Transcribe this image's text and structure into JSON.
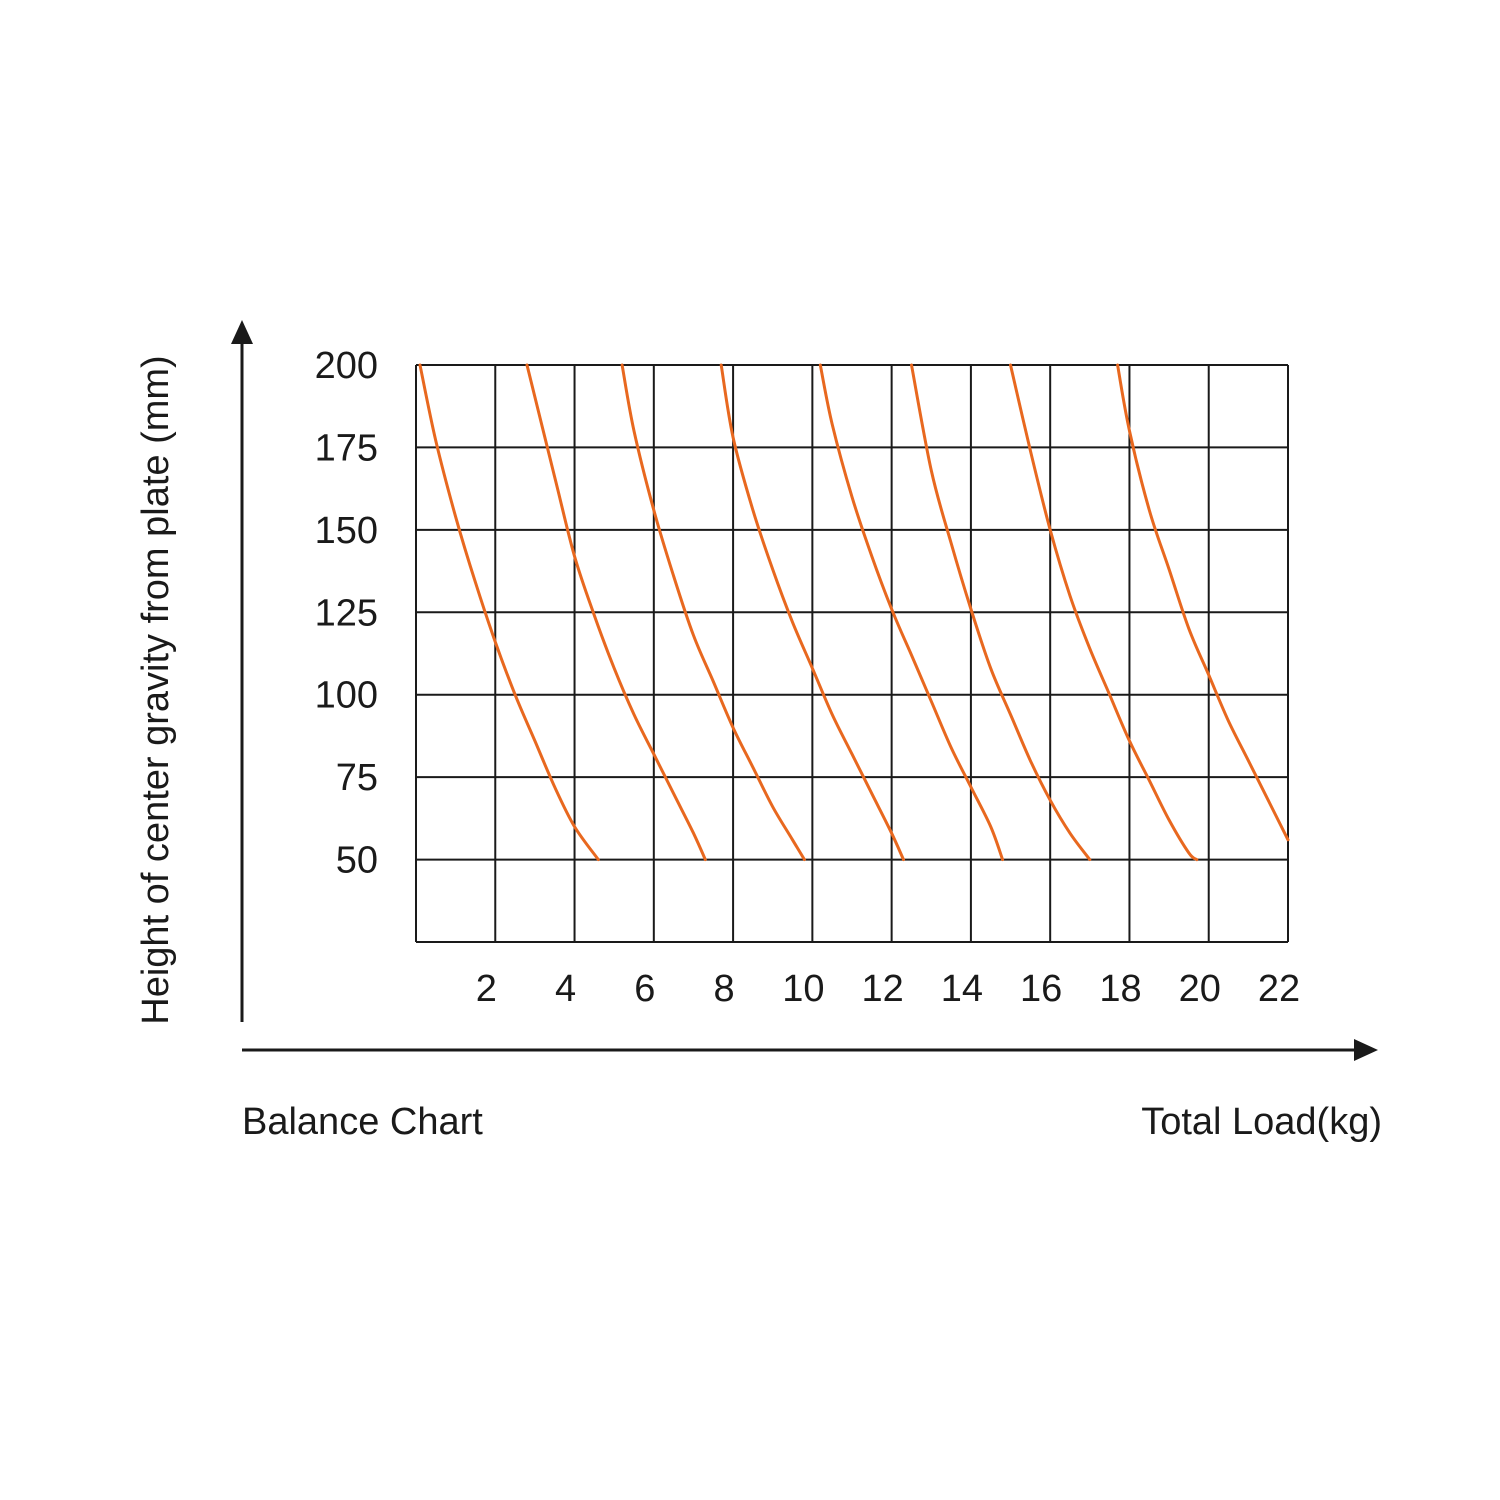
{
  "chart_data": {
    "type": "line",
    "title": "Balance Chart",
    "xlabel": "Total Load(kg)",
    "ylabel": "Height of center gravity from plate (mm)",
    "x_ticks": [
      "2",
      "4",
      "6",
      "8",
      "10",
      "12",
      "14",
      "16",
      "18",
      "20",
      "22"
    ],
    "y_ticks": [
      "200",
      "175",
      "150",
      "125",
      "100",
      "75",
      "50"
    ],
    "xlim": [
      0,
      22
    ],
    "ylim": [
      25,
      200
    ],
    "grid": true,
    "color": "#e8681f",
    "series": [
      {
        "x": [
          0.1,
          0.5,
          1.0,
          1.5,
          2.0,
          2.5,
          3.0,
          3.5,
          4.0,
          4.6
        ],
        "y": [
          200,
          177,
          154,
          134,
          116,
          100,
          86,
          72,
          60,
          50
        ]
      },
      {
        "x": [
          2.8,
          3.5,
          4.0,
          4.5,
          5.0,
          5.5,
          6.0,
          6.5,
          7.0,
          7.3
        ],
        "y": [
          200,
          166,
          142,
          124,
          108,
          94,
          82,
          70,
          58,
          50
        ]
      },
      {
        "x": [
          5.2,
          5.5,
          6.0,
          6.5,
          7.0,
          7.5,
          8.0,
          8.5,
          9.0,
          9.5,
          9.8
        ],
        "y": [
          200,
          180,
          156,
          136,
          118,
          104,
          90,
          78,
          66,
          56,
          50
        ]
      },
      {
        "x": [
          7.7,
          8.0,
          8.5,
          9.0,
          9.5,
          10.0,
          10.5,
          11.0,
          11.5,
          12.0,
          12.3
        ],
        "y": [
          200,
          178,
          156,
          138,
          122,
          108,
          94,
          82,
          70,
          58,
          50
        ]
      },
      {
        "x": [
          10.2,
          10.5,
          11.0,
          11.5,
          12.0,
          12.5,
          13.0,
          13.5,
          14.0,
          14.5,
          14.8
        ],
        "y": [
          200,
          182,
          160,
          142,
          126,
          112,
          98,
          84,
          72,
          60,
          50
        ]
      },
      {
        "x": [
          12.5,
          13.0,
          13.5,
          14.0,
          14.5,
          15.0,
          15.5,
          16.0,
          16.5,
          17.0
        ],
        "y": [
          200,
          168,
          146,
          126,
          108,
          94,
          80,
          68,
          58,
          50
        ]
      },
      {
        "x": [
          15.0,
          15.5,
          16.0,
          16.5,
          17.0,
          17.5,
          18.0,
          18.5,
          19.0,
          19.5,
          19.7
        ],
        "y": [
          200,
          174,
          150,
          130,
          114,
          100,
          86,
          74,
          62,
          52,
          50
        ]
      },
      {
        "x": [
          17.7,
          18.0,
          18.5,
          19.0,
          19.5,
          20.0,
          20.5,
          21.0,
          21.5,
          22.0
        ],
        "y": [
          200,
          180,
          156,
          138,
          120,
          106,
          92,
          80,
          68,
          56
        ]
      }
    ]
  }
}
